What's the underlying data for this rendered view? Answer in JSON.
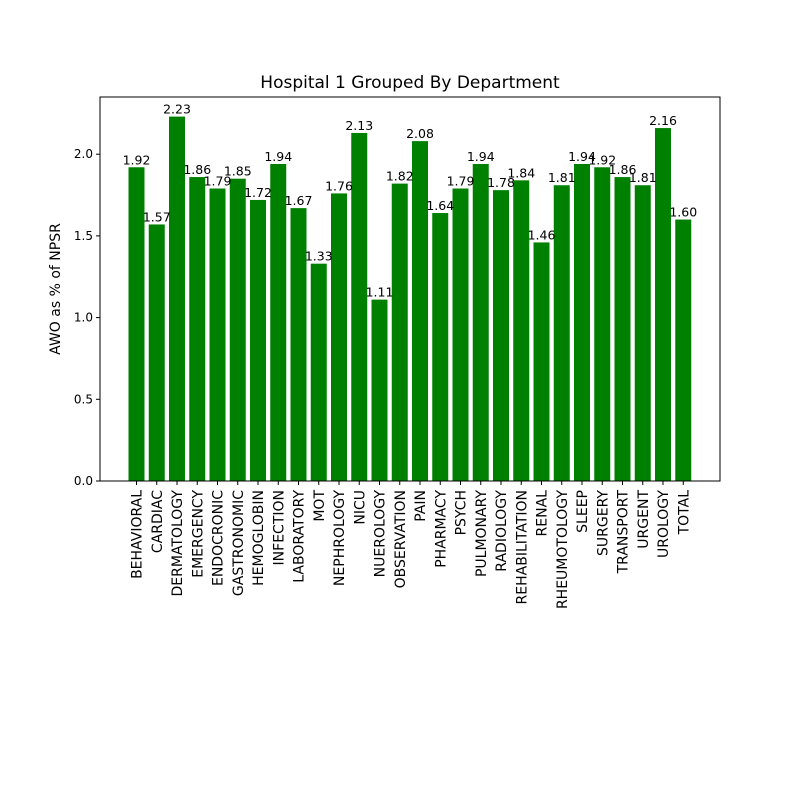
{
  "chart_data": {
    "type": "bar",
    "title": "Hospital 1 Grouped By Department",
    "xlabel": "",
    "ylabel": "AWO as % of NPSR",
    "ylim": [
      0,
      2.35
    ],
    "yticks": [
      "0.0",
      "0.5",
      "1.0",
      "1.5",
      "2.0"
    ],
    "categories": [
      "BEHAVIORAL",
      "CARDIAC",
      "DERMATOLOGY",
      "EMERGENCY",
      "ENDOCRONIC",
      "GASTRONOMIC",
      "HEMOGLOBIN",
      "INFECTION",
      "LABORATORY",
      "MOT",
      "NEPHROLOGY",
      "NICU",
      "NUEROLOGY",
      "OBSERVATION",
      "PAIN",
      "PHARMACY",
      "PSYCH",
      "PULMONARY",
      "RADIOLOGY",
      "REHABILITATION",
      "RENAL",
      "RHEUMOTOLOGY",
      "SLEEP",
      "SURGERY",
      "TRANSPORT",
      "URGENT",
      "UROLOGY",
      "TOTAL"
    ],
    "values": [
      1.92,
      1.57,
      2.23,
      1.86,
      1.79,
      1.85,
      1.72,
      1.94,
      1.67,
      1.33,
      1.76,
      2.13,
      1.11,
      1.82,
      2.08,
      1.64,
      1.79,
      1.94,
      1.78,
      1.84,
      1.46,
      1.81,
      1.94,
      1.92,
      1.86,
      1.81,
      2.16,
      1.6
    ],
    "labels": [
      "1.92",
      "1.57",
      "2.23",
      "1.86",
      "1.79",
      "1.85",
      "1.72",
      "1.94",
      "1.67",
      "1.33",
      "1.76",
      "2.13",
      "1.11",
      "1.82",
      "2.08",
      "1.64",
      "1.79",
      "1.94",
      "1.78",
      "1.84",
      "1.46",
      "1.81",
      "1.94",
      "1.92",
      "1.86",
      "1.81",
      "2.16",
      "1.60"
    ],
    "bar_color": "#008000",
    "grid": false,
    "legend": "none"
  }
}
